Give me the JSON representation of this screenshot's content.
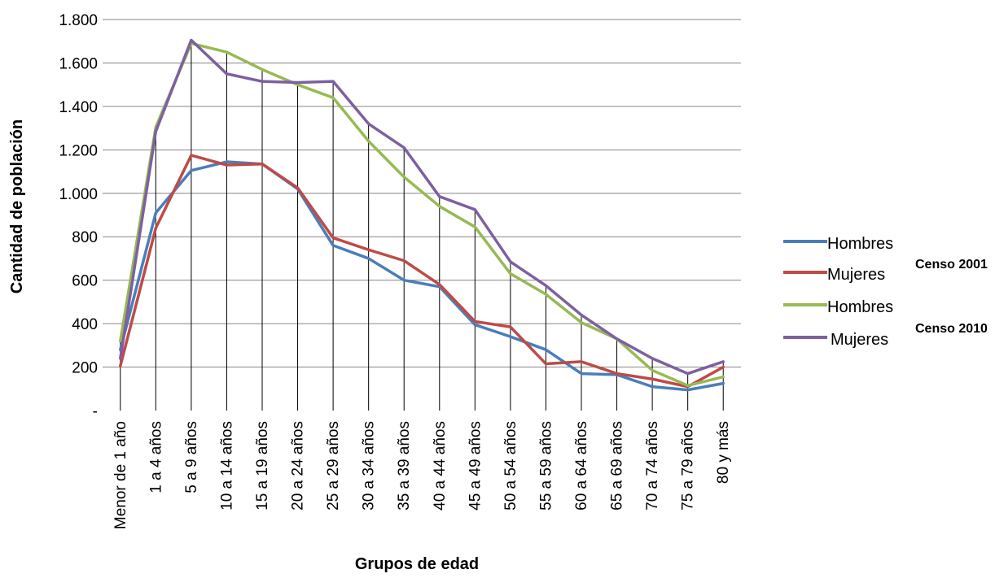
{
  "chart_data": {
    "type": "line",
    "xlabel": "Grupos de edad",
    "ylabel": "Cantidad de población",
    "ylim": [
      0,
      1800
    ],
    "yticks": [
      {
        "value": 0,
        "label": "-"
      },
      {
        "value": 200,
        "label": "200"
      },
      {
        "value": 400,
        "label": "400"
      },
      {
        "value": 600,
        "label": "600"
      },
      {
        "value": 800,
        "label": "800"
      },
      {
        "value": 1000,
        "label": "1.000"
      },
      {
        "value": 1200,
        "label": "1.200"
      },
      {
        "value": 1400,
        "label": "1.400"
      },
      {
        "value": 1600,
        "label": "1.600"
      },
      {
        "value": 1800,
        "label": "1.800"
      }
    ],
    "grid": "horizontal",
    "drop_lines": true,
    "legend_position": "right",
    "categories": [
      "Menor de 1 año",
      "1 a 4 años",
      "5 a 9 años",
      "10 a 14 años",
      "15 a 19 años",
      "20 a 24 años",
      "25 a 29 años",
      "30 a 34 años",
      "35 a 39 años",
      "40 a 44 años",
      "45 a 49 años",
      "50 a 54 años",
      "55 a 59 años",
      "60 a 64 años",
      "65 a 69 años",
      "70 a 74 años",
      "75 a 79 años",
      "80 y más"
    ],
    "series": [
      {
        "name": "Hombres",
        "group": "Censo 2001",
        "color": "#4a7ebb",
        "values": [
          280,
          910,
          1105,
          1145,
          1135,
          1020,
          760,
          700,
          600,
          570,
          395,
          340,
          280,
          170,
          165,
          110,
          95,
          125
        ]
      },
      {
        "name": "Mujeres",
        "group": "Censo 2001",
        "color": "#be4b48",
        "values": [
          205,
          840,
          1175,
          1130,
          1135,
          1025,
          795,
          740,
          690,
          580,
          410,
          385,
          215,
          225,
          170,
          145,
          110,
          200
        ]
      },
      {
        "name": "Hombres",
        "group": "Censo 2010",
        "color": "#98b954",
        "values": [
          320,
          1305,
          1690,
          1650,
          1570,
          1500,
          1440,
          1240,
          1075,
          940,
          845,
          630,
          535,
          405,
          330,
          185,
          115,
          155
        ]
      },
      {
        "name": "Mujeres",
        "group": "Censo 2010",
        "color": "#7d60a0",
        "values": [
          240,
          1285,
          1705,
          1550,
          1515,
          1510,
          1515,
          1320,
          1210,
          985,
          925,
          685,
          575,
          440,
          330,
          240,
          170,
          225
        ]
      }
    ],
    "legend_groups": [
      "Censo 2001",
      "Censo 2010"
    ]
  }
}
